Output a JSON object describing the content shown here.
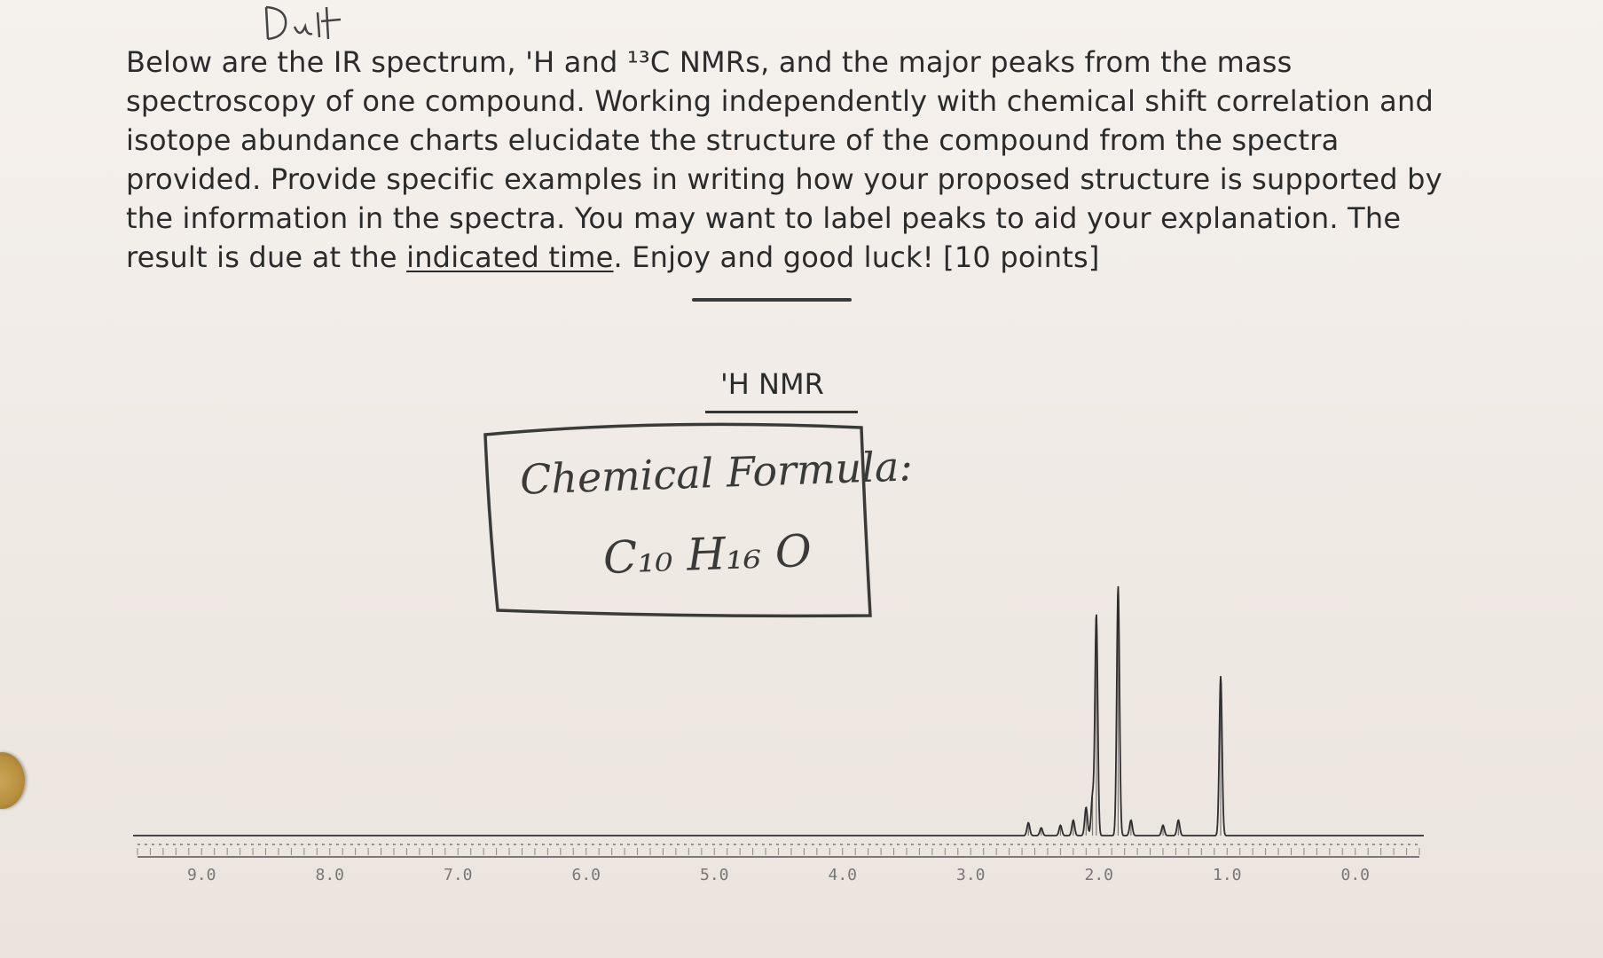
{
  "draft_mark": "Draft",
  "instructions": {
    "part1": "Below are the IR spectrum, 'H and ¹³C NMRs, and the major peaks from the mass spectroscopy of one compound. Working independently with chemical shift correlation and isotope abundance charts elucidate the structure of the compound from the spectra provided. Provide specific examples in writing how your proposed structure is supported by the information in the spectra. You may want to label peaks to aid your explanation. The result is due at the ",
    "underlined": "indicated time",
    "part2": ". Enjoy and good luck!   [10 points]"
  },
  "nmr_title": "'H NMR",
  "formula": {
    "label": "Chemical Formula:",
    "value": "C₁₀ H₁₆ O"
  },
  "chart_data": {
    "type": "line",
    "title": "'H NMR",
    "xlabel": "",
    "ylabel": "",
    "xlim": [
      9.5,
      -0.5
    ],
    "x_ticks": [
      "9.0",
      "8.0",
      "7.0",
      "6.0",
      "5.0",
      "4.0",
      "3.0",
      "2.0",
      "1.0",
      "0.0"
    ],
    "x_reversed": true,
    "baseline_y": 0,
    "peaks": [
      {
        "ppm": 2.55,
        "height": 0.05
      },
      {
        "ppm": 2.45,
        "height": 0.03
      },
      {
        "ppm": 2.3,
        "height": 0.04
      },
      {
        "ppm": 2.2,
        "height": 0.06
      },
      {
        "ppm": 2.1,
        "height": 0.11
      },
      {
        "ppm": 2.05,
        "height": 0.15
      },
      {
        "ppm": 2.02,
        "height": 0.86
      },
      {
        "ppm": 1.85,
        "height": 0.97
      },
      {
        "ppm": 1.75,
        "height": 0.06
      },
      {
        "ppm": 1.5,
        "height": 0.04
      },
      {
        "ppm": 1.38,
        "height": 0.06
      },
      {
        "ppm": 1.05,
        "height": 0.62
      }
    ]
  }
}
